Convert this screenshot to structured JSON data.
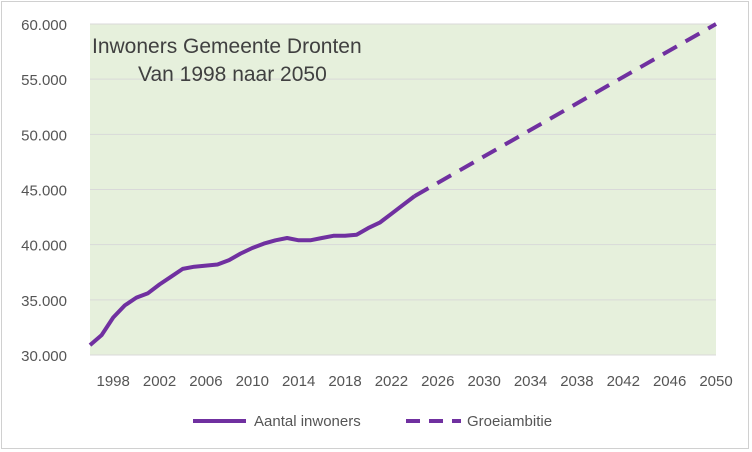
{
  "chart_data": {
    "type": "line",
    "title_lines": [
      "Inwoners Gemeente Dronten",
      "Van 1998 naar 2050"
    ],
    "xlabel": "",
    "ylabel": "",
    "xlim": [
      1996,
      2050
    ],
    "ylim": [
      30000,
      60000
    ],
    "x_ticks": [
      {
        "value": 1998,
        "label": "1998"
      },
      {
        "value": 2002,
        "label": "2002"
      },
      {
        "value": 2006,
        "label": "2006"
      },
      {
        "value": 2010,
        "label": "2010"
      },
      {
        "value": 2014,
        "label": "2014"
      },
      {
        "value": 2018,
        "label": "2018"
      },
      {
        "value": 2022,
        "label": "2022"
      },
      {
        "value": 2026,
        "label": "2026"
      },
      {
        "value": 2030,
        "label": "2030"
      },
      {
        "value": 2034,
        "label": "2034"
      },
      {
        "value": 2038,
        "label": "2038"
      },
      {
        "value": 2042,
        "label": "2042"
      },
      {
        "value": 2046,
        "label": "2046"
      },
      {
        "value": 2050,
        "label": "2050"
      }
    ],
    "y_ticks": [
      {
        "value": 30000,
        "label": "30.000"
      },
      {
        "value": 35000,
        "label": "35.000"
      },
      {
        "value": 40000,
        "label": "40.000"
      },
      {
        "value": 45000,
        "label": "45.000"
      },
      {
        "value": 50000,
        "label": "50.000"
      },
      {
        "value": 55000,
        "label": "55.000"
      },
      {
        "value": 60000,
        "label": "60.000"
      }
    ],
    "grid": true,
    "plot_background": "#e6f0dc",
    "series": [
      {
        "name": "Aantal inwoners",
        "style": "solid",
        "color": "#7030a0",
        "points": [
          [
            1996,
            30900
          ],
          [
            1997,
            31800
          ],
          [
            1998,
            33400
          ],
          [
            1999,
            34500
          ],
          [
            2000,
            35200
          ],
          [
            2001,
            35600
          ],
          [
            2002,
            36400
          ],
          [
            2003,
            37100
          ],
          [
            2004,
            37800
          ],
          [
            2005,
            38000
          ],
          [
            2006,
            38100
          ],
          [
            2007,
            38200
          ],
          [
            2008,
            38600
          ],
          [
            2009,
            39200
          ],
          [
            2010,
            39700
          ],
          [
            2011,
            40100
          ],
          [
            2012,
            40400
          ],
          [
            2013,
            40600
          ],
          [
            2014,
            40400
          ],
          [
            2015,
            40400
          ],
          [
            2016,
            40600
          ],
          [
            2017,
            40800
          ],
          [
            2018,
            40800
          ],
          [
            2019,
            40900
          ],
          [
            2020,
            41500
          ],
          [
            2021,
            42000
          ],
          [
            2022,
            42800
          ],
          [
            2023,
            43600
          ],
          [
            2024,
            44400
          ]
        ]
      },
      {
        "name": "Groeiambitie",
        "style": "dashed",
        "color": "#7030a0",
        "points": [
          [
            2024,
            44400
          ],
          [
            2050,
            60000
          ]
        ]
      }
    ],
    "legend": {
      "position": "bottom",
      "items": [
        {
          "label": "Aantal inwoners",
          "style": "solid"
        },
        {
          "label": "Groeiambitie",
          "style": "dashed"
        }
      ]
    }
  }
}
